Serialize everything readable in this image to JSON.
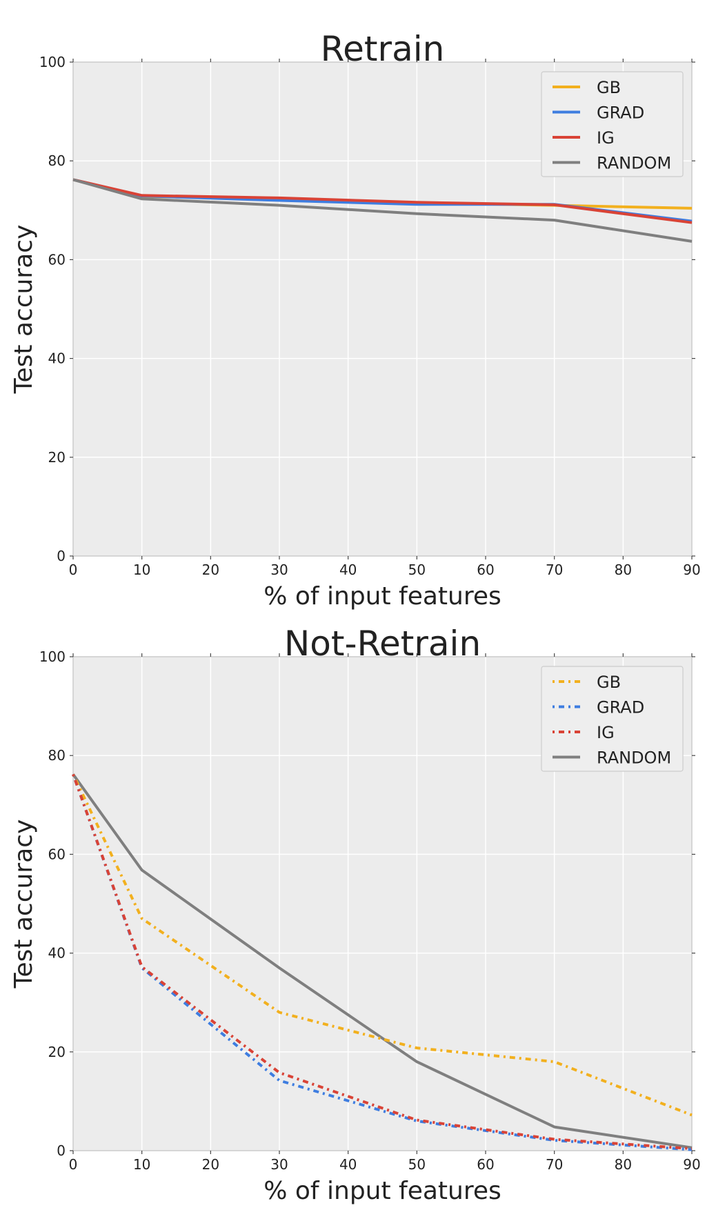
{
  "chart_data": [
    {
      "type": "line",
      "title": "Retrain",
      "xlabel": "% of input features",
      "ylabel": "Test accuracy",
      "xlim": [
        0,
        90
      ],
      "ylim": [
        0,
        100
      ],
      "xticks": [
        "0",
        "10",
        "20",
        "30",
        "40",
        "50",
        "60",
        "70",
        "80",
        "90"
      ],
      "yticks": [
        "0",
        "20",
        "40",
        "60",
        "80",
        "100"
      ],
      "grid": true,
      "legend_position": "top-right",
      "x": [
        0,
        10,
        30,
        50,
        70,
        90
      ],
      "series": [
        {
          "name": "GB",
          "style": "solid",
          "color": "#f2b01e",
          "values": [
            76.2,
            72.8,
            72.3,
            71.5,
            71.0,
            70.4
          ]
        },
        {
          "name": "GRAD",
          "style": "solid",
          "color": "#3e7de0",
          "values": [
            76.2,
            72.9,
            72.0,
            71.2,
            71.2,
            67.8
          ]
        },
        {
          "name": "IG",
          "style": "solid",
          "color": "#d94336",
          "values": [
            76.2,
            73.0,
            72.5,
            71.6,
            71.1,
            67.5
          ]
        },
        {
          "name": "RANDOM",
          "style": "solid",
          "color": "#7f7f7f",
          "values": [
            76.2,
            72.3,
            71.0,
            69.3,
            68.0,
            63.7
          ]
        }
      ]
    },
    {
      "type": "line",
      "title": "Not-Retrain",
      "xlabel": "% of input features",
      "ylabel": "Test accuracy",
      "xlim": [
        0,
        90
      ],
      "ylim": [
        0,
        100
      ],
      "xticks": [
        "0",
        "10",
        "20",
        "30",
        "40",
        "50",
        "60",
        "70",
        "80",
        "90"
      ],
      "yticks": [
        "0",
        "20",
        "40",
        "60",
        "80",
        "100"
      ],
      "grid": true,
      "legend_position": "top-right",
      "x": [
        0,
        10,
        30,
        50,
        70,
        90
      ],
      "series": [
        {
          "name": "GB",
          "style": "dotted",
          "color": "#f2b01e",
          "values": [
            76.2,
            47.0,
            28.0,
            20.8,
            18.0,
            7.2
          ]
        },
        {
          "name": "GRAD",
          "style": "dotted",
          "color": "#3e7de0",
          "values": [
            76.2,
            37.0,
            14.2,
            6.0,
            2.1,
            0.2
          ]
        },
        {
          "name": "IG",
          "style": "dotted",
          "color": "#d94336",
          "values": [
            76.2,
            37.2,
            15.8,
            6.2,
            2.3,
            0.4
          ]
        },
        {
          "name": "RANDOM",
          "style": "solid",
          "color": "#7f7f7f",
          "values": [
            76.2,
            56.8,
            37.0,
            18.0,
            4.8,
            0.6
          ]
        }
      ]
    }
  ]
}
